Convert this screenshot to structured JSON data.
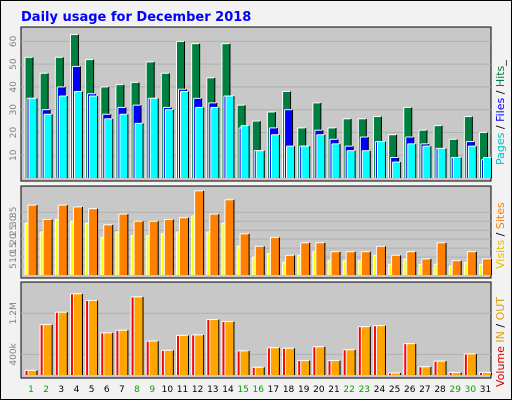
{
  "title": "Daily usage for December 2018",
  "colors": {
    "panel": "#c8c8c8",
    "title": "#0000ff",
    "axis_text": "#7f7f7f",
    "pages": "#00ffff",
    "files": "#0000ff",
    "hits": "#008040",
    "visits": "#ffff00",
    "sites": "#ff8000",
    "kin": "#ffa500",
    "kout": "#ff4040",
    "volume": "#ff0000",
    "weekend": "#00a000",
    "weekday": "#000000"
  },
  "legends": {
    "top": [
      {
        "text": "Pages",
        "color": "#00c0c0"
      },
      {
        "text": " / ",
        "color": "#000000"
      },
      {
        "text": "Files",
        "color": "#0000ff"
      },
      {
        "text": " / ",
        "color": "#000000"
      },
      {
        "text": "Hits",
        "color": "#008040"
      },
      {
        "text": "_",
        "color": "#000000"
      }
    ],
    "middle": [
      {
        "text": "Visits",
        "color": "#e0c000"
      },
      {
        "text": " / ",
        "color": "#000000"
      },
      {
        "text": "Sites",
        "color": "#ff8000"
      }
    ],
    "bottom": [
      {
        "text": "Volume",
        "color": "#d00000"
      },
      {
        "text": "  ",
        "color": "#000000"
      },
      {
        "text": "IN",
        "color": "#e0a000"
      },
      {
        "text": " / ",
        "color": "#000000"
      },
      {
        "text": "OUT",
        "color": "#e0a000"
      }
    ]
  },
  "chart_data": [
    {
      "type": "bar",
      "title": "Daily usage for December 2018",
      "ylim": [
        0,
        65
      ],
      "yticks": [
        "10",
        "20",
        "30",
        "40",
        "50",
        "60"
      ],
      "categories": [
        "1",
        "2",
        "3",
        "4",
        "5",
        "6",
        "7",
        "8",
        "9",
        "10",
        "11",
        "12",
        "13",
        "14",
        "15",
        "16",
        "17",
        "18",
        "19",
        "20",
        "21",
        "22",
        "23",
        "24",
        "25",
        "26",
        "27",
        "28",
        "29",
        "30",
        "31"
      ],
      "series": [
        {
          "name": "Hits",
          "values": [
            53,
            46,
            53,
            63,
            52,
            40,
            41,
            42,
            51,
            46,
            60,
            59,
            44,
            59,
            32,
            25,
            29,
            38,
            22,
            33,
            22,
            26,
            26,
            27,
            19,
            31,
            21,
            23,
            17,
            27,
            20
          ]
        },
        {
          "name": "Files",
          "values": [
            35,
            30,
            40,
            49,
            37,
            28,
            31,
            32,
            35,
            31,
            39,
            35,
            33,
            36,
            22,
            12,
            22,
            30,
            14,
            21,
            17,
            14,
            18,
            16,
            9,
            18,
            15,
            13,
            9,
            16,
            8
          ]
        },
        {
          "name": "Pages",
          "values": [
            35,
            28,
            36,
            38,
            36,
            26,
            28,
            24,
            35,
            30,
            38,
            31,
            31,
            36,
            23,
            12,
            19,
            14,
            14,
            19,
            15,
            12,
            12,
            16,
            7,
            15,
            14,
            13,
            9,
            14,
            9
          ]
        }
      ]
    },
    {
      "type": "bar",
      "ylim": [
        0,
        48
      ],
      "yticks": [
        "5",
        "10",
        "15",
        "20",
        "25",
        "30",
        "35"
      ],
      "categories": [
        "1",
        "2",
        "3",
        "4",
        "5",
        "6",
        "7",
        "8",
        "9",
        "10",
        "11",
        "12",
        "13",
        "14",
        "15",
        "16",
        "17",
        "18",
        "19",
        "20",
        "21",
        "22",
        "23",
        "24",
        "25",
        "26",
        "27",
        "28",
        "29",
        "30",
        "31"
      ],
      "series": [
        {
          "name": "Visits",
          "values": [
            29,
            24,
            31,
            30,
            29,
            21,
            24,
            22,
            22,
            23,
            24,
            33,
            24,
            29,
            16,
            10,
            12,
            7,
            11,
            13,
            8,
            8,
            8,
            11,
            6,
            9,
            6,
            6,
            5,
            7,
            6
          ]
        },
        {
          "name": "Sites",
          "values": [
            39,
            31,
            39,
            38,
            37,
            28,
            34,
            30,
            30,
            31,
            32,
            47,
            34,
            42,
            23,
            16,
            21,
            11,
            18,
            18,
            13,
            13,
            13,
            16,
            11,
            13,
            9,
            18,
            8,
            13,
            9
          ]
        }
      ]
    },
    {
      "type": "bar",
      "ylim": [
        0,
        1.75
      ],
      "yticks": [
        "400k",
        "1.2M"
      ],
      "categories": [
        "1",
        "2",
        "3",
        "4",
        "5",
        "6",
        "7",
        "8",
        "9",
        "10",
        "11",
        "12",
        "13",
        "14",
        "15",
        "16",
        "17",
        "18",
        "19",
        "20",
        "21",
        "22",
        "23",
        "24",
        "25",
        "26",
        "27",
        "28",
        "29",
        "30",
        "31"
      ],
      "series": [
        {
          "name": "Volume",
          "values": [
            0.09,
            0.98,
            1.22,
            1.58,
            1.45,
            0.82,
            0.87,
            1.52,
            0.66,
            0.48,
            0.77,
            0.78,
            1.08,
            1.04,
            0.47,
            0.15,
            0.53,
            0.52,
            0.28,
            0.55,
            0.28,
            0.49,
            0.94,
            0.96,
            0.04,
            0.61,
            0.16,
            0.27,
            0.05,
            0.41,
            0.05
          ]
        }
      ]
    }
  ],
  "x_labels": {
    "days": [
      "1",
      "2",
      "3",
      "4",
      "5",
      "6",
      "7",
      "8",
      "9",
      "10",
      "11",
      "12",
      "13",
      "14",
      "15",
      "16",
      "17",
      "18",
      "19",
      "20",
      "21",
      "22",
      "23",
      "24",
      "25",
      "26",
      "27",
      "28",
      "29",
      "30",
      "31"
    ],
    "weekend_days": [
      1,
      2,
      8,
      9,
      15,
      16,
      22,
      23,
      29,
      30
    ]
  }
}
